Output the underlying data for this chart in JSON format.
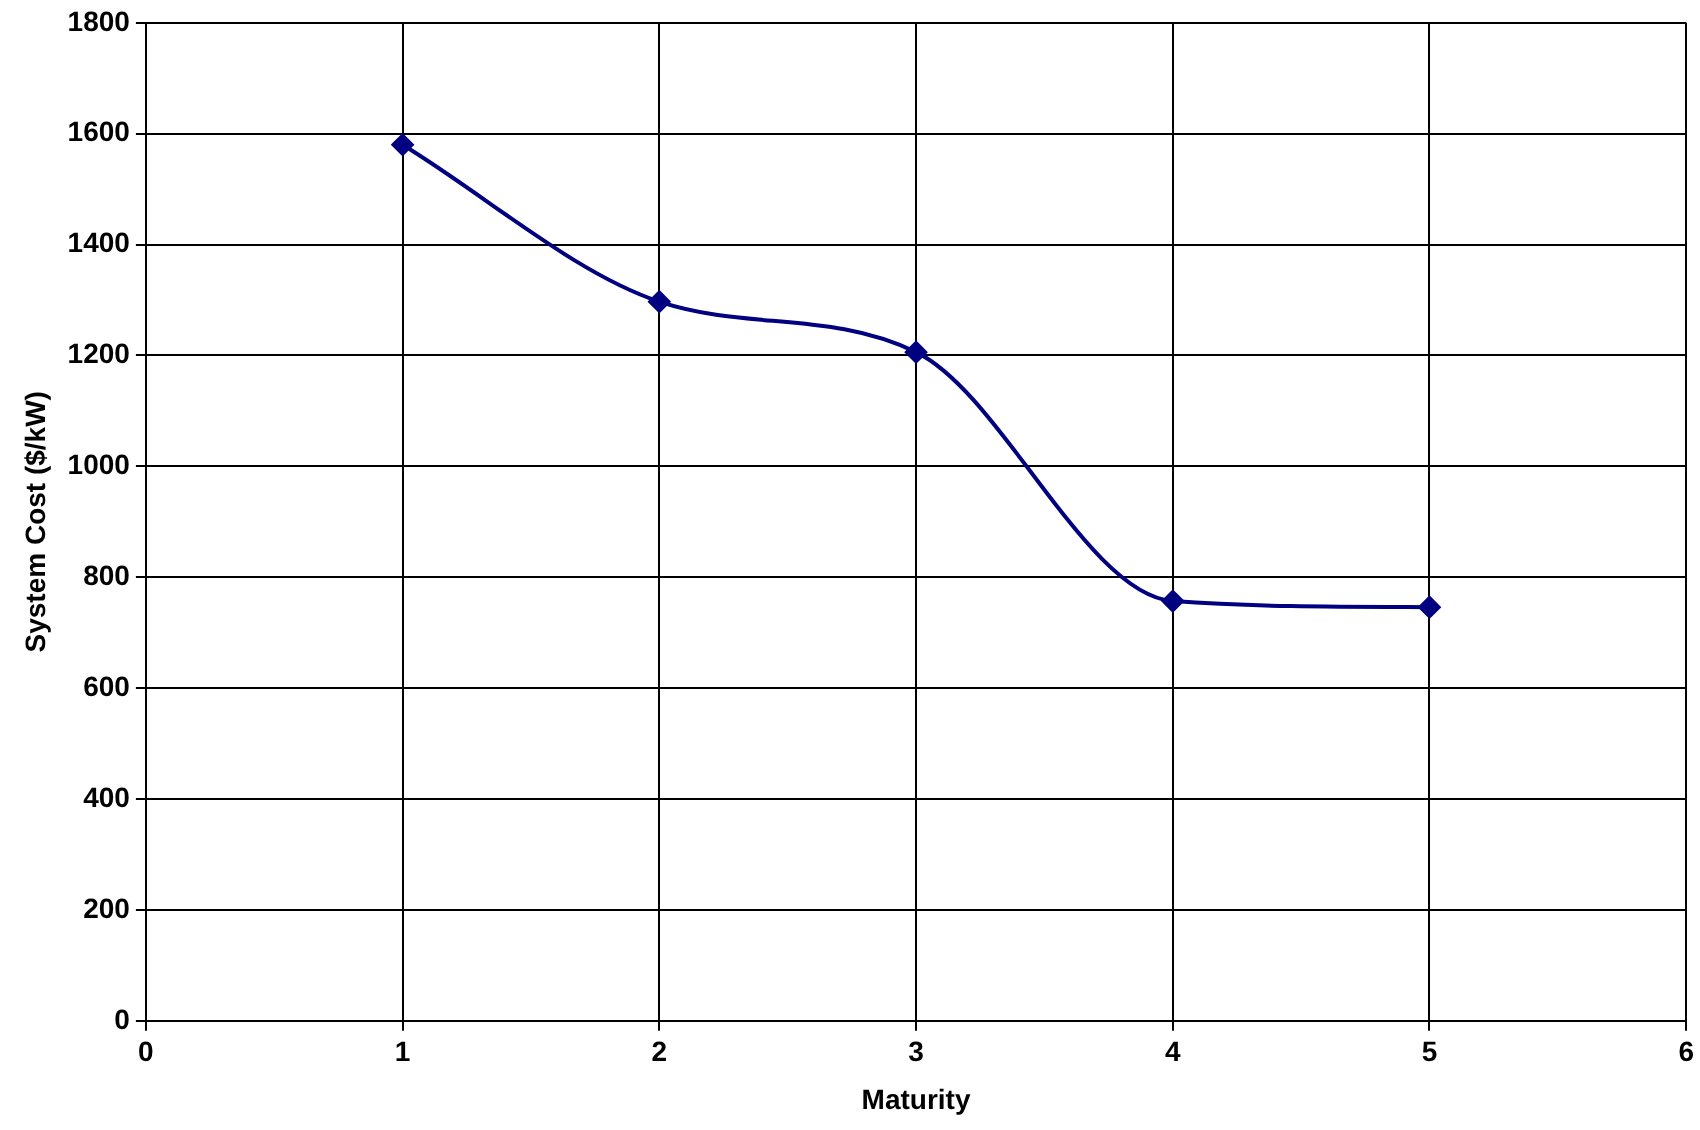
{
  "chart_data": {
    "type": "line",
    "xlabel": "Maturity",
    "ylabel": "System Cost ($/kW)",
    "x": [
      1,
      2,
      3,
      4,
      5
    ],
    "series": [
      {
        "color": "#000080",
        "values": [
          1580,
          1297,
          1206,
          757,
          746
        ]
      }
    ],
    "xlim": [
      0,
      6
    ],
    "xticks": [
      0,
      1,
      2,
      3,
      4,
      5,
      6
    ],
    "ylim": [
      0,
      1800
    ],
    "yticks": [
      0,
      200,
      400,
      600,
      800,
      1000,
      1200,
      1400,
      1600,
      1800
    ],
    "grid": true,
    "legend": false,
    "marker": "diamond",
    "line_style": "solid"
  }
}
